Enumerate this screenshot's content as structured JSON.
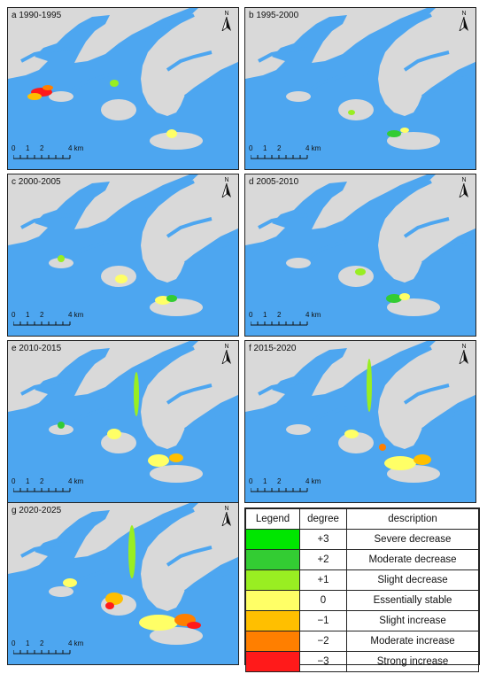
{
  "panels": [
    {
      "title": "a 1990-1995",
      "north": "N"
    },
    {
      "title": "b 1995-2000",
      "north": "N"
    },
    {
      "title": "c 2000-2005",
      "north": "N"
    },
    {
      "title": "d 2005-2010",
      "north": "N"
    },
    {
      "title": "e 2010-2015",
      "north": "N"
    },
    {
      "title": "f 2015-2020",
      "north": "N"
    },
    {
      "title": "g 2020-2025",
      "north": "N"
    }
  ],
  "scale": {
    "ticks": [
      "0",
      "1",
      "2",
      "4 km"
    ]
  },
  "legend": {
    "headers": [
      "Legend",
      "degree",
      "description"
    ],
    "rows": [
      {
        "degree": "+3",
        "description": "Severe decrease",
        "color": "#00e600"
      },
      {
        "degree": "+2",
        "description": "Moderate decrease",
        "color": "#33cc33"
      },
      {
        "degree": "+1",
        "description": "Slight decrease",
        "color": "#99ee22"
      },
      {
        "degree": "0",
        "description": "Essentially stable",
        "color": "#ffff66"
      },
      {
        "degree": "−1",
        "description": "Slight increase",
        "color": "#ffbf00"
      },
      {
        "degree": "−2",
        "description": "Moderate increase",
        "color": "#ff7f00"
      },
      {
        "degree": "−3",
        "description": "Strong increase",
        "color": "#ff1a1a"
      }
    ]
  },
  "colors": {
    "water": "#4da6f0",
    "land": "#d9d9d9"
  }
}
